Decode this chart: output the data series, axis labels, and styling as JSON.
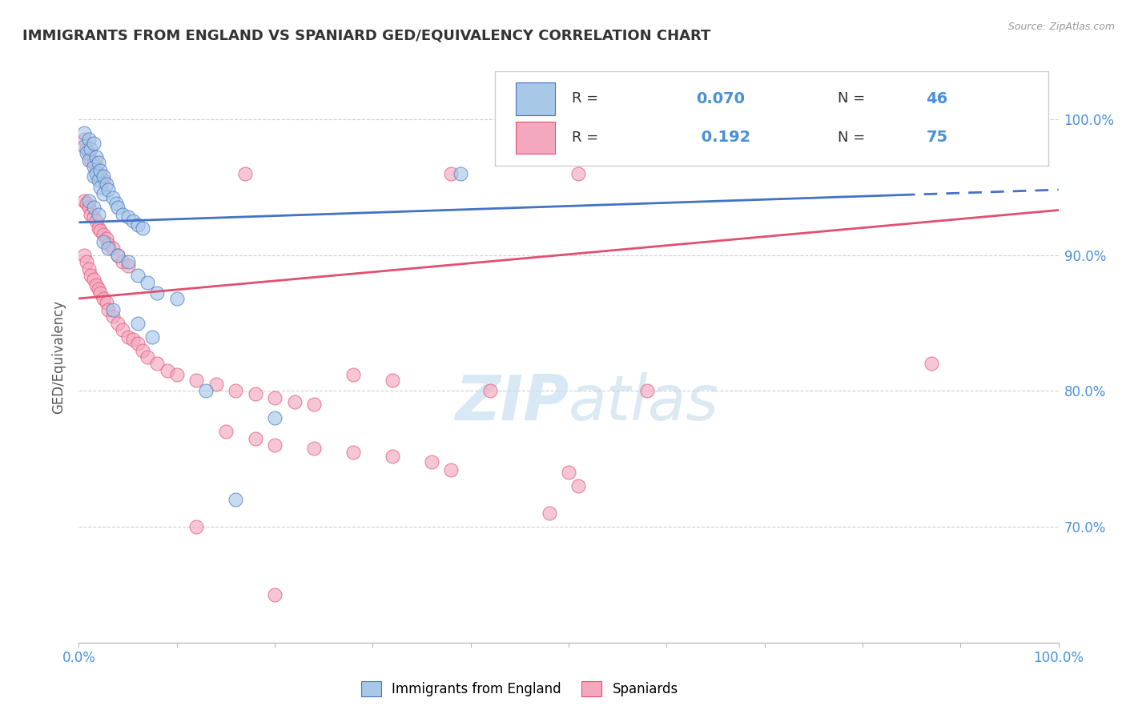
{
  "title": "IMMIGRANTS FROM ENGLAND VS SPANIARD GED/EQUIVALENCY CORRELATION CHART",
  "source": "Source: ZipAtlas.com",
  "ylabel": "GED/Equivalency",
  "y_ticks": [
    0.7,
    0.8,
    0.9,
    1.0
  ],
  "y_tick_labels": [
    "70.0%",
    "80.0%",
    "90.0%",
    "100.0%"
  ],
  "x_range": [
    0.0,
    1.0
  ],
  "y_range": [
    0.615,
    1.035
  ],
  "R1": 0.07,
  "N1": 46,
  "R2": 0.192,
  "N2": 75,
  "color_blue": "#a8c8e8",
  "color_pink": "#f4a8be",
  "color_blue_line": "#4472c4",
  "color_pink_line": "#e05070",
  "color_axis_labels": "#4a90d9",
  "watermark_color": "#c8dff0",
  "background": "#ffffff",
  "blue_intercept": 0.924,
  "blue_slope": 0.024,
  "pink_intercept": 0.868,
  "pink_slope": 0.065,
  "blue_dots": [
    [
      0.005,
      0.99
    ],
    [
      0.005,
      0.98
    ],
    [
      0.008,
      0.975
    ],
    [
      0.01,
      0.985
    ],
    [
      0.01,
      0.97
    ],
    [
      0.012,
      0.978
    ],
    [
      0.015,
      0.982
    ],
    [
      0.015,
      0.965
    ],
    [
      0.015,
      0.958
    ],
    [
      0.018,
      0.972
    ],
    [
      0.018,
      0.96
    ],
    [
      0.02,
      0.968
    ],
    [
      0.02,
      0.955
    ],
    [
      0.022,
      0.962
    ],
    [
      0.022,
      0.95
    ],
    [
      0.025,
      0.958
    ],
    [
      0.025,
      0.945
    ],
    [
      0.028,
      0.952
    ],
    [
      0.03,
      0.948
    ],
    [
      0.035,
      0.942
    ],
    [
      0.038,
      0.938
    ],
    [
      0.04,
      0.935
    ],
    [
      0.045,
      0.93
    ],
    [
      0.05,
      0.928
    ],
    [
      0.055,
      0.925
    ],
    [
      0.06,
      0.922
    ],
    [
      0.065,
      0.92
    ],
    [
      0.01,
      0.94
    ],
    [
      0.015,
      0.935
    ],
    [
      0.02,
      0.93
    ],
    [
      0.025,
      0.91
    ],
    [
      0.03,
      0.905
    ],
    [
      0.04,
      0.9
    ],
    [
      0.05,
      0.895
    ],
    [
      0.06,
      0.885
    ],
    [
      0.07,
      0.88
    ],
    [
      0.08,
      0.872
    ],
    [
      0.1,
      0.868
    ],
    [
      0.035,
      0.86
    ],
    [
      0.06,
      0.85
    ],
    [
      0.075,
      0.84
    ],
    [
      0.13,
      0.8
    ],
    [
      0.2,
      0.78
    ],
    [
      0.86,
      0.99
    ],
    [
      0.39,
      0.96
    ],
    [
      0.16,
      0.72
    ]
  ],
  "pink_dots": [
    [
      0.005,
      0.985
    ],
    [
      0.008,
      0.978
    ],
    [
      0.01,
      0.975
    ],
    [
      0.012,
      0.97
    ],
    [
      0.015,
      0.968
    ],
    [
      0.018,
      0.965
    ],
    [
      0.02,
      0.96
    ],
    [
      0.022,
      0.958
    ],
    [
      0.025,
      0.955
    ],
    [
      0.005,
      0.94
    ],
    [
      0.008,
      0.938
    ],
    [
      0.01,
      0.935
    ],
    [
      0.012,
      0.93
    ],
    [
      0.015,
      0.928
    ],
    [
      0.018,
      0.925
    ],
    [
      0.02,
      0.92
    ],
    [
      0.022,
      0.918
    ],
    [
      0.025,
      0.915
    ],
    [
      0.028,
      0.912
    ],
    [
      0.03,
      0.908
    ],
    [
      0.035,
      0.905
    ],
    [
      0.04,
      0.9
    ],
    [
      0.045,
      0.895
    ],
    [
      0.05,
      0.892
    ],
    [
      0.005,
      0.9
    ],
    [
      0.008,
      0.895
    ],
    [
      0.01,
      0.89
    ],
    [
      0.012,
      0.885
    ],
    [
      0.015,
      0.882
    ],
    [
      0.018,
      0.878
    ],
    [
      0.02,
      0.875
    ],
    [
      0.022,
      0.872
    ],
    [
      0.025,
      0.868
    ],
    [
      0.028,
      0.865
    ],
    [
      0.03,
      0.86
    ],
    [
      0.035,
      0.855
    ],
    [
      0.04,
      0.85
    ],
    [
      0.045,
      0.845
    ],
    [
      0.05,
      0.84
    ],
    [
      0.055,
      0.838
    ],
    [
      0.06,
      0.835
    ],
    [
      0.065,
      0.83
    ],
    [
      0.07,
      0.825
    ],
    [
      0.08,
      0.82
    ],
    [
      0.09,
      0.815
    ],
    [
      0.1,
      0.812
    ],
    [
      0.12,
      0.808
    ],
    [
      0.14,
      0.805
    ],
    [
      0.16,
      0.8
    ],
    [
      0.18,
      0.798
    ],
    [
      0.2,
      0.795
    ],
    [
      0.22,
      0.792
    ],
    [
      0.24,
      0.79
    ],
    [
      0.15,
      0.77
    ],
    [
      0.18,
      0.765
    ],
    [
      0.2,
      0.76
    ],
    [
      0.24,
      0.758
    ],
    [
      0.28,
      0.755
    ],
    [
      0.32,
      0.752
    ],
    [
      0.36,
      0.748
    ],
    [
      0.28,
      0.812
    ],
    [
      0.32,
      0.808
    ],
    [
      0.17,
      0.96
    ],
    [
      0.38,
      0.96
    ],
    [
      0.51,
      0.96
    ],
    [
      0.42,
      0.8
    ],
    [
      0.58,
      0.8
    ],
    [
      0.5,
      0.74
    ],
    [
      0.51,
      0.73
    ],
    [
      0.48,
      0.71
    ],
    [
      0.2,
      0.65
    ],
    [
      0.12,
      0.7
    ],
    [
      0.38,
      0.742
    ],
    [
      0.84,
      0.98
    ],
    [
      0.87,
      0.82
    ]
  ]
}
